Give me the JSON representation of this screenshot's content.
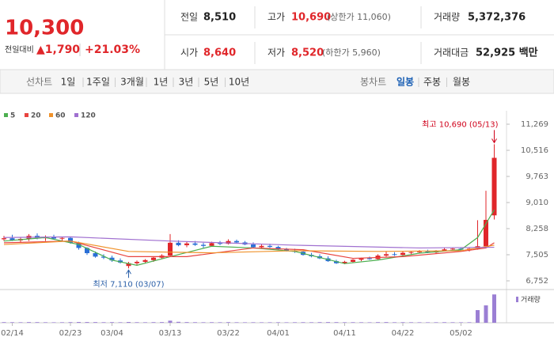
{
  "quote": {
    "price": "10,300",
    "change_label": "전일대비",
    "change": "▲1,790",
    "rate": "+21.03%"
  },
  "summary": [
    [
      {
        "label": "전일",
        "value": "8,510"
      },
      {
        "label": "고가",
        "value": "10,690",
        "note": "(상한가 11,060)"
      },
      {
        "label": "거래량",
        "value": "5,372,376"
      }
    ],
    [
      {
        "label": "시가",
        "value": "8,640"
      },
      {
        "label": "저가",
        "value": "8,520",
        "note": "(하한가 5,960)"
      },
      {
        "label": "거래대금",
        "value": "52,925 백만"
      }
    ]
  ],
  "tabs": {
    "line_label": "선차트",
    "line_periods": [
      "1일",
      "1주일",
      "3개월",
      "1년",
      "3년",
      "5년",
      "10년"
    ],
    "candle_label": "봉차트",
    "candle_periods": [
      "일봉",
      "주봉",
      "월봉"
    ],
    "selected_candle_period": 0
  },
  "chart_data": {
    "type": "candlestick",
    "categories": [
      null,
      "02/14",
      null,
      null,
      null,
      null,
      null,
      null,
      "02/23",
      null,
      null,
      null,
      null,
      "03/04",
      null,
      null,
      null,
      null,
      null,
      null,
      "03/13",
      null,
      null,
      null,
      null,
      null,
      null,
      "03/22",
      null,
      null,
      null,
      null,
      null,
      "04/01",
      null,
      null,
      null,
      null,
      null,
      null,
      null,
      "04/11",
      null,
      null,
      null,
      null,
      null,
      null,
      "04/22",
      null,
      null,
      null,
      null,
      null,
      null,
      "05/02",
      null,
      null,
      null,
      null
    ],
    "open": [
      7950,
      7980,
      7920,
      7960,
      8050,
      7980,
      8020,
      7970,
      7990,
      7850,
      7700,
      7550,
      7450,
      7420,
      7340,
      7180,
      7260,
      7300,
      7350,
      7420,
      7480,
      7850,
      7780,
      7830,
      7790,
      7760,
      7840,
      7820,
      7900,
      7860,
      7800,
      7720,
      7760,
      7730,
      7660,
      7630,
      7590,
      7500,
      7460,
      7400,
      7320,
      7260,
      7300,
      7360,
      7400,
      7380,
      7480,
      7520,
      7500,
      7560,
      7580,
      7600,
      7570,
      7620,
      7660,
      7680,
      7650,
      7680,
      7750,
      8640
    ],
    "high": [
      8050,
      8080,
      8000,
      8100,
      8120,
      8060,
      8080,
      8030,
      8010,
      7880,
      7720,
      7600,
      7520,
      7480,
      7400,
      7300,
      7340,
      7380,
      7450,
      7520,
      8100,
      7920,
      7880,
      7900,
      7850,
      7880,
      7900,
      7950,
      7940,
      7900,
      7860,
      7800,
      7820,
      7760,
      7700,
      7680,
      7620,
      7560,
      7520,
      7460,
      7360,
      7330,
      7380,
      7420,
      7450,
      7520,
      7600,
      7580,
      7600,
      7620,
      7640,
      7650,
      7640,
      7700,
      7720,
      7720,
      7700,
      8500,
      9350,
      10690
    ],
    "low": [
      7900,
      7900,
      7850,
      7900,
      7950,
      7900,
      7950,
      7900,
      7820,
      7650,
      7500,
      7420,
      7380,
      7300,
      7250,
      7110,
      7200,
      7250,
      7300,
      7380,
      7450,
      7750,
      7720,
      7760,
      7700,
      7740,
      7780,
      7800,
      7820,
      7780,
      7700,
      7680,
      7700,
      7640,
      7600,
      7560,
      7480,
      7430,
      7380,
      7300,
      7240,
      7230,
      7280,
      7320,
      7360,
      7360,
      7450,
      7470,
      7480,
      7520,
      7540,
      7550,
      7540,
      7600,
      7620,
      7630,
      7600,
      7650,
      7720,
      8520
    ],
    "close": [
      7980,
      7920,
      7960,
      8050,
      7980,
      8020,
      7970,
      7990,
      7850,
      7700,
      7550,
      7450,
      7420,
      7340,
      7280,
      7260,
      7300,
      7350,
      7420,
      7480,
      7850,
      7780,
      7830,
      7790,
      7760,
      7840,
      7820,
      7900,
      7860,
      7800,
      7720,
      7760,
      7730,
      7660,
      7630,
      7590,
      7500,
      7460,
      7400,
      7320,
      7260,
      7300,
      7360,
      7400,
      7380,
      7480,
      7520,
      7500,
      7560,
      7580,
      7600,
      7570,
      7620,
      7660,
      7680,
      7650,
      7680,
      7750,
      8510,
      10300
    ],
    "up_color": "#e0262a",
    "down_color": "#2a6fd6",
    "ylim": [
      6592,
      11657
    ],
    "yticks": [
      {
        "value": 11269,
        "label": "11,269"
      },
      {
        "value": 10516,
        "label": "10,516"
      },
      {
        "value": 9763,
        "label": "9,763"
      },
      {
        "value": 9010,
        "label": "9,010"
      },
      {
        "value": 8258,
        "label": "8,258"
      },
      {
        "value": 7505,
        "label": "7,505"
      },
      {
        "value": 6752,
        "label": "6,752"
      }
    ],
    "grid": false,
    "moving_averages": [
      {
        "name": "5",
        "color": "#4caf50",
        "x": [
          0,
          5,
          9,
          13,
          16,
          20,
          25,
          30,
          35,
          41,
          45,
          50,
          55,
          57,
          59
        ],
        "values": [
          7900,
          8000,
          7800,
          7350,
          7200,
          7450,
          7750,
          7700,
          7600,
          7250,
          7350,
          7550,
          7650,
          8000,
          8800
        ]
      },
      {
        "name": "20",
        "color": "#e8433f",
        "x": [
          0,
          8,
          15,
          22,
          30,
          36,
          42,
          48,
          55,
          58,
          59
        ],
        "values": [
          7850,
          7900,
          7450,
          7450,
          7700,
          7650,
          7400,
          7450,
          7600,
          7700,
          7850
        ]
      },
      {
        "name": "60",
        "color": "#f0922b",
        "x": [
          0,
          8,
          15,
          25,
          35,
          45,
          55,
          59
        ],
        "values": [
          7800,
          7900,
          7600,
          7560,
          7620,
          7600,
          7620,
          7780
        ]
      },
      {
        "name": "120",
        "color": "#a070d0",
        "x": [
          0,
          8,
          20,
          35,
          50,
          59
        ],
        "values": [
          8000,
          8020,
          7900,
          7780,
          7700,
          7720
        ]
      }
    ],
    "annotations": [
      {
        "text": "최고 10,690 (05/13)",
        "index": 59,
        "value": 10690,
        "color": "#d0021b"
      },
      {
        "text": "최저 7,110 (03/07)",
        "index": 15,
        "value": 7110,
        "color": "#2a5fa8"
      }
    ],
    "volume": {
      "name": "거래량",
      "color": "#9b7fd4",
      "ylim": [
        0,
        6000000
      ],
      "values": [
        120000,
        110000,
        100000,
        130000,
        120000,
        100000,
        90000,
        100000,
        120000,
        150000,
        140000,
        130000,
        110000,
        120000,
        100000,
        150000,
        110000,
        100000,
        120000,
        130000,
        400000,
        180000,
        130000,
        110000,
        100000,
        110000,
        100000,
        120000,
        100000,
        90000,
        100000,
        90000,
        95000,
        100000,
        90000,
        100000,
        110000,
        100000,
        120000,
        130000,
        120000,
        100000,
        110000,
        100000,
        90000,
        120000,
        130000,
        100000,
        110000,
        100000,
        95000,
        90000,
        100000,
        110000,
        100000,
        90000,
        100000,
        2400000,
        3300000,
        5372376
      ]
    }
  }
}
